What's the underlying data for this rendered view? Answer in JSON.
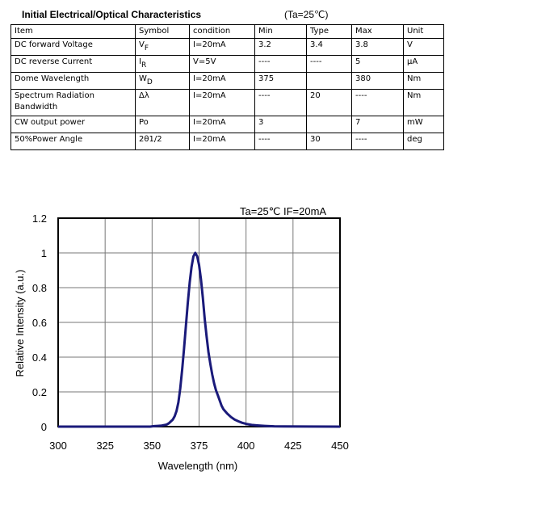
{
  "header": {
    "title": "Initial Electrical/Optical Characteristics",
    "condition": "(Ta=25℃)"
  },
  "table": {
    "columns": [
      "Item",
      "Symbol",
      "condition",
      "Min",
      "Type",
      "Max",
      "Unit"
    ],
    "rows": [
      {
        "item": "DC forward Voltage",
        "symbol": "V",
        "symbol_sub": "F",
        "condition": "I=20mA",
        "min": "3.2",
        "type": "3.4",
        "max": "3.8",
        "unit": "V"
      },
      {
        "item": "DC reverse Current",
        "symbol": "I",
        "symbol_sub": "R",
        "condition": "V=5V",
        "min": "----",
        "type": "----",
        "max": "5",
        "unit": "μA"
      },
      {
        "item": "Dome Wavelength",
        "symbol": "W",
        "symbol_sub": "D",
        "condition": "I=20mA",
        "min": "375",
        "type": "",
        "max": "380",
        "unit": "Nm"
      },
      {
        "item": "Spectrum Radiation Bandwidth",
        "symbol": "Δλ",
        "symbol_sub": "",
        "condition": "I=20mA",
        "min": "----",
        "type": "20",
        "max": "----",
        "unit": "Nm"
      },
      {
        "item": "CW output power",
        "symbol": "Po",
        "symbol_sub": "",
        "condition": "I=20mA",
        "min": "3",
        "type": "",
        "max": "7",
        "unit": "mW"
      },
      {
        "item": "50%Power Angle",
        "symbol": "2θ1/2",
        "symbol_sub": "",
        "condition": "I=20mA",
        "min": "----",
        "type": "30",
        "max": "----",
        "unit": "deg"
      }
    ]
  },
  "chart_data": {
    "type": "line",
    "annotation": "Ta=25℃  IF=20mA",
    "xlabel": "Wavelength (nm)",
    "ylabel": "Relative Intensity (a.u.)",
    "xlim": [
      300,
      450
    ],
    "ylim": [
      0,
      1.2
    ],
    "x_ticks": [
      "300",
      "325",
      "350",
      "375",
      "400",
      "425",
      "450"
    ],
    "y_ticks": [
      "0",
      "0.2",
      "0.4",
      "0.6",
      "0.8",
      "1",
      "1.2"
    ],
    "grid": true,
    "line_color": "#1a1a7a",
    "series": [
      {
        "x": [
          300,
          349,
          351,
          353,
          355,
          357,
          358,
          359,
          360,
          361,
          362,
          363,
          364,
          365,
          366,
          367,
          368,
          369,
          370,
          371,
          372,
          373,
          374,
          375,
          376,
          377,
          378,
          379,
          380,
          381,
          382,
          383,
          384,
          385,
          386,
          387,
          388,
          390,
          392,
          394,
          396,
          398,
          400,
          403,
          406,
          410,
          415,
          420,
          450
        ],
        "y": [
          0,
          0,
          0.003,
          0.004,
          0.006,
          0.01,
          0.013,
          0.02,
          0.03,
          0.04,
          0.06,
          0.09,
          0.14,
          0.22,
          0.33,
          0.45,
          0.58,
          0.71,
          0.83,
          0.92,
          0.98,
          1.0,
          0.98,
          0.93,
          0.85,
          0.74,
          0.62,
          0.52,
          0.43,
          0.36,
          0.3,
          0.25,
          0.21,
          0.18,
          0.15,
          0.12,
          0.1,
          0.075,
          0.055,
          0.04,
          0.03,
          0.022,
          0.016,
          0.01,
          0.007,
          0.004,
          0.002,
          0.001,
          0
        ]
      }
    ]
  }
}
